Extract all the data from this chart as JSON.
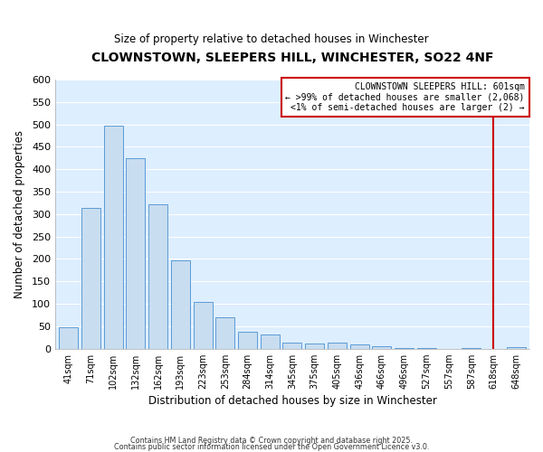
{
  "title": "CLOWNSTOWN, SLEEPERS HILL, WINCHESTER, SO22 4NF",
  "subtitle": "Size of property relative to detached houses in Winchester",
  "xlabel": "Distribution of detached houses by size in Winchester",
  "ylabel": "Number of detached properties",
  "categories": [
    "41sqm",
    "71sqm",
    "102sqm",
    "132sqm",
    "162sqm",
    "193sqm",
    "223sqm",
    "253sqm",
    "284sqm",
    "314sqm",
    "345sqm",
    "375sqm",
    "405sqm",
    "436sqm",
    "466sqm",
    "496sqm",
    "527sqm",
    "557sqm",
    "587sqm",
    "618sqm",
    "648sqm"
  ],
  "values": [
    47,
    314,
    497,
    424,
    321,
    196,
    105,
    70,
    38,
    32,
    13,
    12,
    13,
    9,
    5,
    1,
    1,
    0,
    1,
    0,
    4
  ],
  "bar_color": "#c8ddf0",
  "bar_edge_color": "#5b9bd5",
  "plot_bg_color": "#ddeeff",
  "fig_bg_color": "#ffffff",
  "grid_color": "#ffffff",
  "vline_x": 19.0,
  "vline_color": "#cc0000",
  "annotation_text": "CLOWNSTOWN SLEEPERS HILL: 601sqm\n← >99% of detached houses are smaller (2,068)\n<1% of semi-detached houses are larger (2) →",
  "annotation_box_facecolor": "#ffffff",
  "annotation_box_edgecolor": "#cc0000",
  "ylim": [
    0,
    600
  ],
  "yticks": [
    0,
    50,
    100,
    150,
    200,
    250,
    300,
    350,
    400,
    450,
    500,
    550,
    600
  ],
  "footer1": "Contains HM Land Registry data © Crown copyright and database right 2025.",
  "footer2": "Contains public sector information licensed under the Open Government Licence v3.0."
}
